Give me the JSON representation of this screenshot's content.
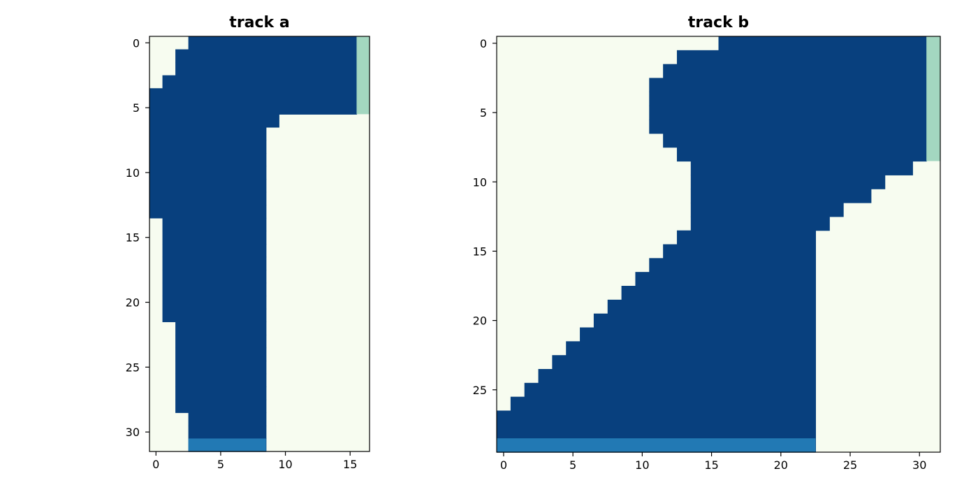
{
  "colors": {
    "background": "#f7fcf0",
    "track": "#08407e",
    "start": "#a3d7c0",
    "end": "#2279b4",
    "axis": "#000000"
  },
  "chart_data": [
    {
      "type": "heatmap",
      "title": "track a",
      "n_cols": 17,
      "n_rows": 32,
      "xlim": [
        -0.5,
        16.5
      ],
      "ylim": [
        31.5,
        -0.5
      ],
      "xticks": [
        0,
        5,
        10,
        15
      ],
      "yticks": [
        0,
        5,
        10,
        15,
        20,
        25,
        30
      ],
      "grid": false,
      "legend": false,
      "cell_legend": {
        "0": "background",
        "1": "track",
        "2": "start",
        "3": "end"
      },
      "track_spans": [
        [
          3,
          15
        ],
        [
          2,
          15
        ],
        [
          2,
          15
        ],
        [
          1,
          15
        ],
        [
          0,
          15
        ],
        [
          0,
          15
        ],
        [
          0,
          9
        ],
        [
          0,
          8
        ],
        [
          0,
          8
        ],
        [
          0,
          8
        ],
        [
          0,
          8
        ],
        [
          0,
          8
        ],
        [
          0,
          8
        ],
        [
          0,
          8
        ],
        [
          1,
          8
        ],
        [
          1,
          8
        ],
        [
          1,
          8
        ],
        [
          1,
          8
        ],
        [
          1,
          8
        ],
        [
          1,
          8
        ],
        [
          1,
          8
        ],
        [
          1,
          8
        ],
        [
          2,
          8
        ],
        [
          2,
          8
        ],
        [
          2,
          8
        ],
        [
          2,
          8
        ],
        [
          2,
          8
        ],
        [
          2,
          8
        ],
        [
          2,
          8
        ],
        [
          3,
          8
        ],
        [
          3,
          8
        ],
        [
          3,
          8
        ]
      ],
      "start_cells": [
        [
          16,
          0,
          5
        ]
      ],
      "end_cells": [
        [
          31,
          3,
          8
        ]
      ]
    },
    {
      "type": "heatmap",
      "title": "track b",
      "n_cols": 32,
      "n_rows": 30,
      "xlim": [
        -0.5,
        31.5
      ],
      "ylim": [
        29.5,
        -0.5
      ],
      "xticks": [
        0,
        5,
        10,
        15,
        20,
        25,
        30
      ],
      "yticks": [
        0,
        5,
        10,
        15,
        20,
        25
      ],
      "grid": false,
      "legend": false,
      "cell_legend": {
        "0": "background",
        "1": "track",
        "2": "start",
        "3": "end"
      },
      "track_spans": [
        [
          16,
          30
        ],
        [
          13,
          30
        ],
        [
          12,
          30
        ],
        [
          11,
          30
        ],
        [
          11,
          30
        ],
        [
          11,
          30
        ],
        [
          11,
          30
        ],
        [
          12,
          30
        ],
        [
          13,
          30
        ],
        [
          14,
          29
        ],
        [
          14,
          27
        ],
        [
          14,
          26
        ],
        [
          14,
          24
        ],
        [
          14,
          23
        ],
        [
          13,
          22
        ],
        [
          12,
          22
        ],
        [
          11,
          22
        ],
        [
          10,
          22
        ],
        [
          9,
          22
        ],
        [
          8,
          22
        ],
        [
          7,
          22
        ],
        [
          6,
          22
        ],
        [
          5,
          22
        ],
        [
          4,
          22
        ],
        [
          3,
          22
        ],
        [
          2,
          22
        ],
        [
          1,
          22
        ],
        [
          0,
          22
        ],
        [
          0,
          22
        ],
        [
          0,
          22
        ]
      ],
      "start_cells": [
        [
          31,
          0,
          8
        ]
      ],
      "end_cells": [
        [
          29,
          0,
          22
        ]
      ]
    }
  ]
}
